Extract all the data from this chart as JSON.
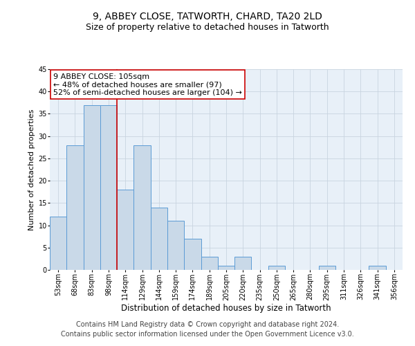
{
  "title": "9, ABBEY CLOSE, TATWORTH, CHARD, TA20 2LD",
  "subtitle": "Size of property relative to detached houses in Tatworth",
  "xlabel": "Distribution of detached houses by size in Tatworth",
  "ylabel": "Number of detached properties",
  "categories": [
    "53sqm",
    "68sqm",
    "83sqm",
    "98sqm",
    "114sqm",
    "129sqm",
    "144sqm",
    "159sqm",
    "174sqm",
    "189sqm",
    "205sqm",
    "220sqm",
    "235sqm",
    "250sqm",
    "265sqm",
    "280sqm",
    "295sqm",
    "311sqm",
    "326sqm",
    "341sqm",
    "356sqm"
  ],
  "values": [
    12,
    28,
    37,
    37,
    18,
    28,
    14,
    11,
    7,
    3,
    1,
    3,
    0,
    1,
    0,
    0,
    1,
    0,
    0,
    1,
    0
  ],
  "bar_color": "#c9d9e8",
  "bar_edge_color": "#5b9bd5",
  "annotation_line1": "9 ABBEY CLOSE: 105sqm",
  "annotation_line2": "← 48% of detached houses are smaller (97)",
  "annotation_line3": "52% of semi-detached houses are larger (104) →",
  "annotation_box_color": "#ffffff",
  "annotation_box_edge_color": "#cc0000",
  "vline_color": "#cc0000",
  "vline_x": 3.5,
  "ylim": [
    0,
    45
  ],
  "yticks": [
    0,
    5,
    10,
    15,
    20,
    25,
    30,
    35,
    40,
    45
  ],
  "footer_line1": "Contains HM Land Registry data © Crown copyright and database right 2024.",
  "footer_line2": "Contains public sector information licensed under the Open Government Licence v3.0.",
  "bg_color": "#ffffff",
  "plot_bg_color": "#e8f0f8",
  "grid_color": "#c8d4e0",
  "title_fontsize": 10,
  "subtitle_fontsize": 9,
  "xlabel_fontsize": 8.5,
  "ylabel_fontsize": 8,
  "tick_fontsize": 7,
  "annotation_fontsize": 8,
  "footer_fontsize": 7
}
